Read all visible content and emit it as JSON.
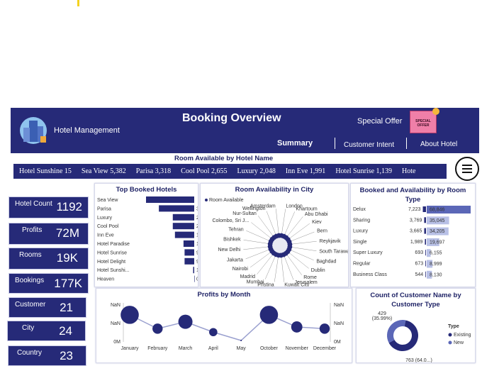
{
  "header": {
    "brand": "Hotel Management",
    "title": "Booking Overview",
    "offer_label": "Special Offer",
    "offer_badge": "SPECIAL OFFER"
  },
  "nav": {
    "summary": "Summary",
    "customer_intent": "Customer Intent",
    "about_hotel": "About Hotel"
  },
  "ticker": {
    "title": "Room Available by Hotel Name",
    "items": [
      "Hotel Sunshine 15",
      "Sea View 5,382",
      "Parisa 3,318",
      "Cool Pool 2,655",
      "Luxury 2,048",
      "Inn Eve 1,991",
      "Hotel Sunrise 1,139",
      "Hote"
    ]
  },
  "kpis": [
    {
      "label": "Hotel Count",
      "value": "1192"
    },
    {
      "label": "Profits",
      "value": "72M"
    },
    {
      "label": "Rooms",
      "value": "19K"
    },
    {
      "label": "Bookings",
      "value": "177K"
    },
    {
      "label": "Customer",
      "value": "21"
    },
    {
      "label": "City",
      "value": "24"
    },
    {
      "label": "Country",
      "value": "23"
    }
  ],
  "colors": {
    "navy": "#262a78",
    "bar": "#262a78",
    "light": "#5b67b7"
  },
  "chart_data": [
    {
      "type": "bar",
      "title": "Top Booked Hotels",
      "orientation": "horizontal",
      "categories": [
        "Sea View",
        "Parisa",
        "Luxury",
        "Cool Pool",
        "Inn Eve",
        "Hotel Paradise",
        "Hotel Sunrise",
        "Hotel Delight",
        "Hotel Sunshi...",
        "Heaven"
      ],
      "values": [
        45,
        33,
        20,
        20,
        18,
        10,
        9,
        9,
        1,
        0
      ],
      "labels": [
        "",
        "33K",
        "20K",
        "20K",
        "18K",
        "10K",
        "9K",
        "9K",
        "1K",
        "0K"
      ]
    },
    {
      "type": "scatter",
      "title": "Room Availability in City",
      "legend": "Room Available",
      "cities": [
        "London",
        "Khartoum",
        "Abu Dhabi",
        "Kiev",
        "Bern",
        "Reykjavik",
        "South Tarawa",
        "Baghdad",
        "Dublin",
        "Rome",
        "Jerusalem",
        "Kuwait City",
        "Pristina",
        "Mumbai",
        "Madrid",
        "Nairobi",
        "Jakarta",
        "New Delhi",
        "Bishkek",
        "Tehran",
        "Colombo, Sri J...",
        "Nur-Sultan",
        "Wellington",
        "Amsterdam"
      ]
    },
    {
      "type": "bar",
      "title": "Booked and Availability by Room Type",
      "categories": [
        "Delux",
        "Sharing",
        "Luxury",
        "Single",
        "Super Luxury",
        "Regular",
        "Business Class"
      ],
      "series": [
        {
          "values": [
            7223,
            3769,
            3665,
            1989,
            693,
            673,
            544
          ],
          "labels": [
            "7,223",
            "3,769",
            "3,665",
            "1,989",
            "693",
            "673",
            "544"
          ]
        },
        {
          "values": [
            68846,
            35045,
            34205,
            19697,
            6155,
            8999,
            8130
          ],
          "labels": [
            "68,846",
            "35,045",
            "34,205",
            "19,697",
            "6,155",
            "8,999",
            "8,130"
          ]
        }
      ]
    },
    {
      "type": "line",
      "title": "Profits by Month",
      "categories": [
        "January",
        "February",
        "March",
        "April",
        "May",
        "October",
        "November",
        "December"
      ],
      "values": [
        7,
        3,
        5,
        2,
        2.3,
        7,
        3.5,
        3
      ],
      "y_tick_labels": [
        "NaN",
        "NaN",
        "0M"
      ],
      "y2_tick_labels": [
        "NaN",
        "NaN",
        "0M"
      ]
    },
    {
      "type": "pie",
      "title": "Count of Customer Name by Customer Type",
      "legend_title": "Type",
      "slices": [
        {
          "name": "Existing",
          "label": "763 (64.0...)",
          "value": 763
        },
        {
          "name": "New",
          "label": "429 (35.99%)",
          "value": 429
        }
      ]
    }
  ]
}
